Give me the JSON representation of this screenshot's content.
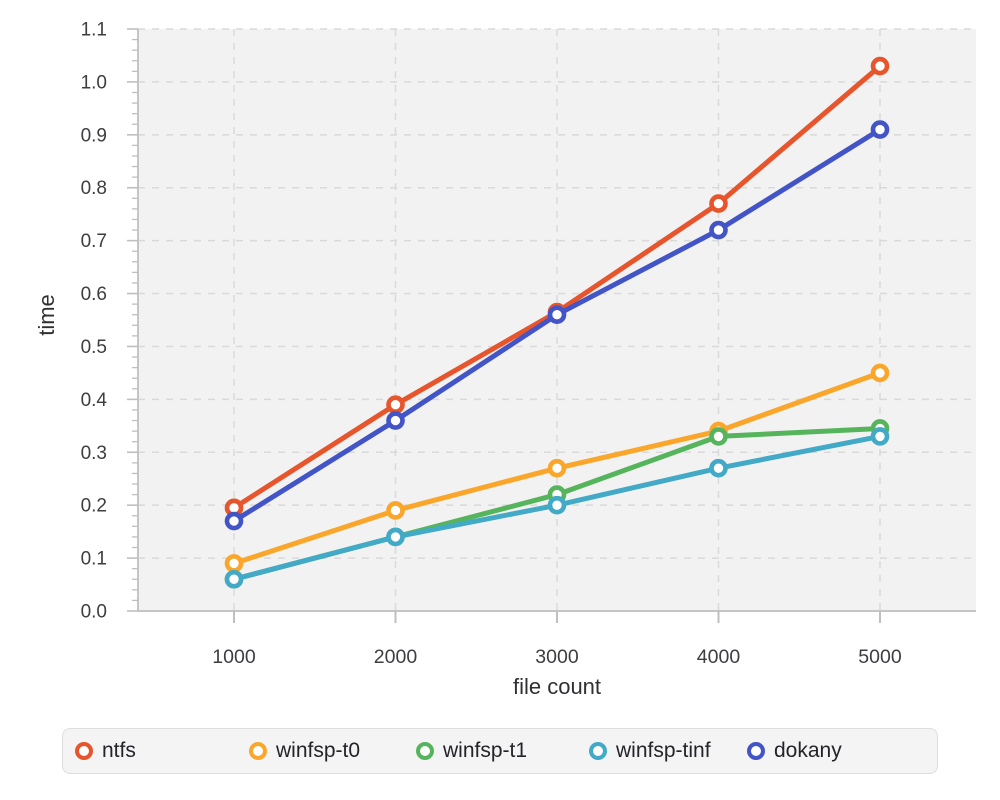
{
  "chart_data": {
    "type": "line",
    "title": "",
    "xlabel": "file count",
    "ylabel": "time",
    "x": [
      1000,
      2000,
      3000,
      4000,
      5000
    ],
    "x_tick_labels": [
      "1000",
      "2000",
      "3000",
      "4000",
      "5000"
    ],
    "y_tick_labels": [
      "0.0",
      "0.1",
      "0.2",
      "0.3",
      "0.4",
      "0.5",
      "0.6",
      "0.7",
      "0.8",
      "0.9",
      "1.0",
      "1.1"
    ],
    "ylim": [
      0,
      1.1
    ],
    "y_major_step": 0.1,
    "y_minor_step": 0.02,
    "grid": "dashed",
    "legend_position": "bottom",
    "series": [
      {
        "name": "ntfs",
        "color": "#E7552C",
        "values": [
          0.195,
          0.39,
          0.565,
          0.77,
          1.03
        ]
      },
      {
        "name": "winfsp-t0",
        "color": "#F9A62B",
        "values": [
          0.09,
          0.19,
          0.27,
          0.34,
          0.45
        ]
      },
      {
        "name": "winfsp-t1",
        "color": "#56B55C",
        "values": [
          0.06,
          0.14,
          0.22,
          0.33,
          0.345
        ]
      },
      {
        "name": "winfsp-tinf",
        "color": "#42A9C6",
        "values": [
          0.06,
          0.14,
          0.2,
          0.27,
          0.33
        ]
      },
      {
        "name": "dokany",
        "color": "#4254C6",
        "values": [
          0.17,
          0.36,
          0.56,
          0.72,
          0.91
        ]
      }
    ]
  },
  "style": {
    "page_bg": "#FFFFFF",
    "plot_bg": "#F2F2F2",
    "gridline_color": "#D9D9D9",
    "axis_line_color": "#C5C5C7",
    "tick_color": "#BFBFC2",
    "tick_label_color": "#3D3D42",
    "axis_title_color": "#2F2F34",
    "legend_bg": "#F4F4F5",
    "legend_border": "#DEDEE1",
    "legend_text_color": "#232329",
    "marker_fill": "#FFFFFF"
  }
}
